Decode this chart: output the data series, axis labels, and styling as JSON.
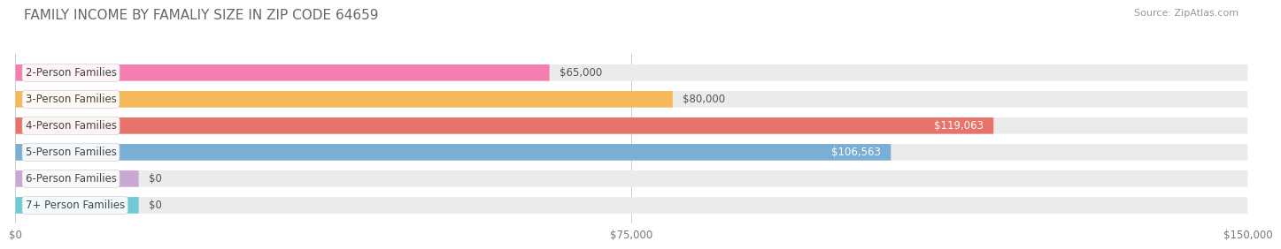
{
  "title": "FAMILY INCOME BY FAMALIY SIZE IN ZIP CODE 64659",
  "source": "Source: ZipAtlas.com",
  "categories": [
    "2-Person Families",
    "3-Person Families",
    "4-Person Families",
    "5-Person Families",
    "6-Person Families",
    "7+ Person Families"
  ],
  "values": [
    65000,
    80000,
    119063,
    106563,
    0,
    0
  ],
  "bar_colors": [
    "#F47EB0",
    "#F5B95A",
    "#E8736A",
    "#7BAED4",
    "#C9A8D4",
    "#6ECAD4"
  ],
  "bar_bg_color": "#EBEBEB",
  "value_labels": [
    "$65,000",
    "$80,000",
    "$119,063",
    "$106,563",
    "$0",
    "$0"
  ],
  "value_label_inside": [
    false,
    false,
    true,
    true,
    false,
    false
  ],
  "xmax": 150000,
  "xtick_labels": [
    "$0",
    "$75,000",
    "$150,000"
  ],
  "xtick_vals": [
    0,
    75000,
    150000
  ],
  "bar_height": 0.62,
  "bg_color": "#ffffff",
  "title_fontsize": 11,
  "label_fontsize": 8.5,
  "value_fontsize": 8.5,
  "tick_fontsize": 8.5,
  "source_fontsize": 8.0,
  "rounding": 6000
}
